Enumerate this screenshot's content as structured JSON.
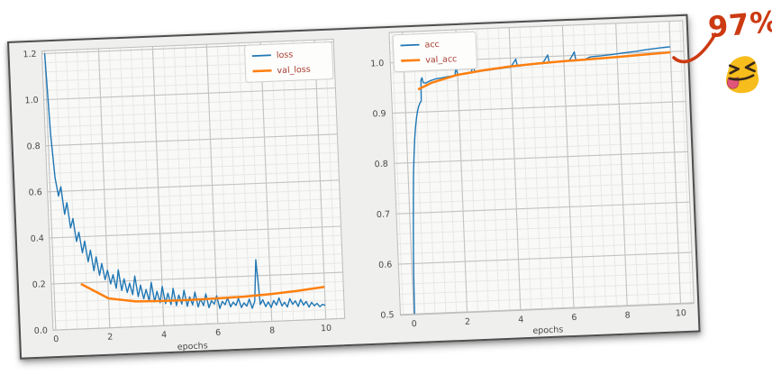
{
  "annotation": {
    "value_label": "97%",
    "color": "#cc3a12",
    "arrow": "curved-swoosh-arrow",
    "emoji": "squinting-face-with-tongue"
  },
  "style": {
    "accent_blue": "#1f77b4",
    "accent_orange": "#ff7f0e",
    "legend_text_color": "#a63a2c",
    "tick_text_color": "#474747",
    "panel_background": "#efefed",
    "plot_background": "#f9f9f8",
    "major_grid": "#c3c3c3",
    "minor_grid": "#e8e8e6",
    "emoji_body": "#f7bd1d",
    "emoji_features": "#38281a",
    "emoji_tongue": "#e2557b"
  },
  "chart_data": [
    {
      "type": "line",
      "title": "",
      "xlabel": "epochs",
      "ylabel": "",
      "xlim": [
        -0.1,
        10.7
      ],
      "ylim": [
        0,
        1.212
      ],
      "xticks": [
        0,
        2,
        4,
        6,
        8,
        10
      ],
      "xticklabels": [
        "0",
        "2",
        "4",
        "6",
        "8",
        "10"
      ],
      "yticks": [
        0.0,
        0.2,
        0.4,
        0.6,
        0.8,
        1.0,
        1.2
      ],
      "yticklabels": [
        "0.0",
        "0.2",
        "0.4",
        "0.6",
        "0.8",
        "1.0",
        "1.2"
      ],
      "grid": "major+minor",
      "legend_position": "upper right",
      "legend": [
        "loss",
        "val_loss"
      ],
      "series": [
        {
          "name": "loss",
          "color": "#1f77b4",
          "x_start": 0,
          "x_step": 0.1,
          "y": [
            1.2,
            0.85,
            0.66,
            0.58,
            0.62,
            0.5,
            0.55,
            0.44,
            0.48,
            0.38,
            0.42,
            0.33,
            0.38,
            0.29,
            0.34,
            0.25,
            0.31,
            0.23,
            0.28,
            0.21,
            0.25,
            0.19,
            0.23,
            0.17,
            0.25,
            0.16,
            0.21,
            0.15,
            0.19,
            0.14,
            0.22,
            0.13,
            0.18,
            0.12,
            0.16,
            0.11,
            0.19,
            0.105,
            0.15,
            0.1,
            0.17,
            0.095,
            0.14,
            0.09,
            0.16,
            0.085,
            0.13,
            0.09,
            0.15,
            0.08,
            0.12,
            0.085,
            0.14,
            0.075,
            0.11,
            0.08,
            0.13,
            0.07,
            0.1,
            0.085,
            0.12,
            0.065,
            0.095,
            0.08,
            0.11,
            0.07,
            0.09,
            0.075,
            0.105,
            0.065,
            0.085,
            0.07,
            0.1,
            0.06,
            0.09,
            0.27,
            0.075,
            0.095,
            0.065,
            0.085,
            0.06,
            0.09,
            0.07,
            0.1,
            0.065,
            0.08,
            0.06,
            0.095,
            0.07,
            0.085,
            0.06,
            0.09,
            0.065,
            0.08,
            0.055,
            0.075,
            0.06,
            0.07,
            0.055,
            0.065,
            0.06
          ]
        },
        {
          "name": "val_loss",
          "color": "#ff7f0e",
          "x": [
            1,
            2,
            3,
            4,
            5,
            6,
            7,
            8,
            9,
            10
          ],
          "y": [
            0.195,
            0.128,
            0.11,
            0.107,
            0.107,
            0.109,
            0.112,
            0.118,
            0.128,
            0.14
          ]
        }
      ]
    },
    {
      "type": "line",
      "title": "",
      "xlabel": "epochs",
      "ylabel": "",
      "xlim": [
        -0.5,
        10.5
      ],
      "ylim": [
        0.4985,
        1.0605
      ],
      "xticks": [
        0,
        2,
        4,
        6,
        8,
        10
      ],
      "xticklabels": [
        "0",
        "2",
        "4",
        "6",
        "8",
        "10"
      ],
      "yticks": [
        0.5,
        0.6,
        0.7,
        0.8,
        0.9,
        1.0
      ],
      "yticklabels": [
        "0.5",
        "0.6",
        "0.7",
        "0.8",
        "0.9",
        "1.0"
      ],
      "grid": "major+minor",
      "legend_position": "upper left",
      "legend": [
        "acc",
        "val_acc"
      ],
      "series": [
        {
          "name": "acc",
          "color": "#1f77b4",
          "x": [
            0.03,
            0.05,
            0.08,
            0.12,
            0.16,
            0.2,
            0.25,
            0.3,
            0.35,
            0.4,
            0.45,
            0.5,
            0.55,
            0.6,
            0.62,
            0.66,
            0.7,
            0.8,
            0.9,
            1.0,
            1.1,
            1.2,
            1.3,
            1.4,
            1.5,
            1.6,
            1.7,
            1.8,
            1.9,
            1.95,
            2.0,
            2.1,
            2.2,
            2.3,
            2.4,
            2.5,
            2.6,
            2.65,
            2.8,
            3.0,
            3.2,
            3.4,
            3.6,
            3.8,
            4.0,
            4.2,
            4.25,
            4.4,
            4.6,
            4.8,
            5.0,
            5.2,
            5.4,
            5.45,
            5.6,
            5.8,
            6.0,
            6.2,
            6.4,
            6.45,
            6.6,
            6.8,
            7.0,
            7.2,
            7.4,
            7.6,
            7.8,
            8.0,
            8.2,
            8.4,
            8.5,
            8.7,
            9.0,
            9.2,
            9.4,
            9.6,
            9.8,
            10.0
          ],
          "y": [
            0.5,
            0.56,
            0.62,
            0.68,
            0.73,
            0.775,
            0.815,
            0.848,
            0.872,
            0.89,
            0.903,
            0.912,
            0.918,
            0.922,
            0.963,
            0.968,
            0.958,
            0.957,
            0.96,
            0.962,
            0.9635,
            0.965,
            0.9655,
            0.966,
            0.967,
            0.968,
            0.9685,
            0.969,
            0.97,
            0.987,
            0.9715,
            0.972,
            0.9725,
            0.973,
            0.9735,
            0.974,
            0.9875,
            0.975,
            0.976,
            0.977,
            0.978,
            0.979,
            0.98,
            0.981,
            0.982,
            0.9975,
            0.983,
            0.984,
            0.9848,
            0.9855,
            0.9862,
            0.9868,
            1.003,
            0.9875,
            0.988,
            0.9887,
            0.9893,
            0.99,
            1.007,
            0.9905,
            0.991,
            0.9916,
            0.996,
            0.9966,
            0.9972,
            0.998,
            0.9988,
            1.0,
            1.001,
            1.002,
            1.0025,
            1.003,
            1.0052,
            1.0062,
            1.0072,
            1.0082,
            1.009,
            1.0095
          ]
        },
        {
          "name": "val_acc",
          "color": "#ff7f0e",
          "x": [
            0.5,
            1,
            2,
            3,
            4,
            5,
            6,
            7,
            8,
            9,
            10
          ],
          "y": [
            0.945,
            0.957,
            0.971,
            0.978,
            0.9835,
            0.987,
            0.9895,
            0.9915,
            0.9935,
            0.996,
            0.9985
          ]
        }
      ]
    }
  ]
}
